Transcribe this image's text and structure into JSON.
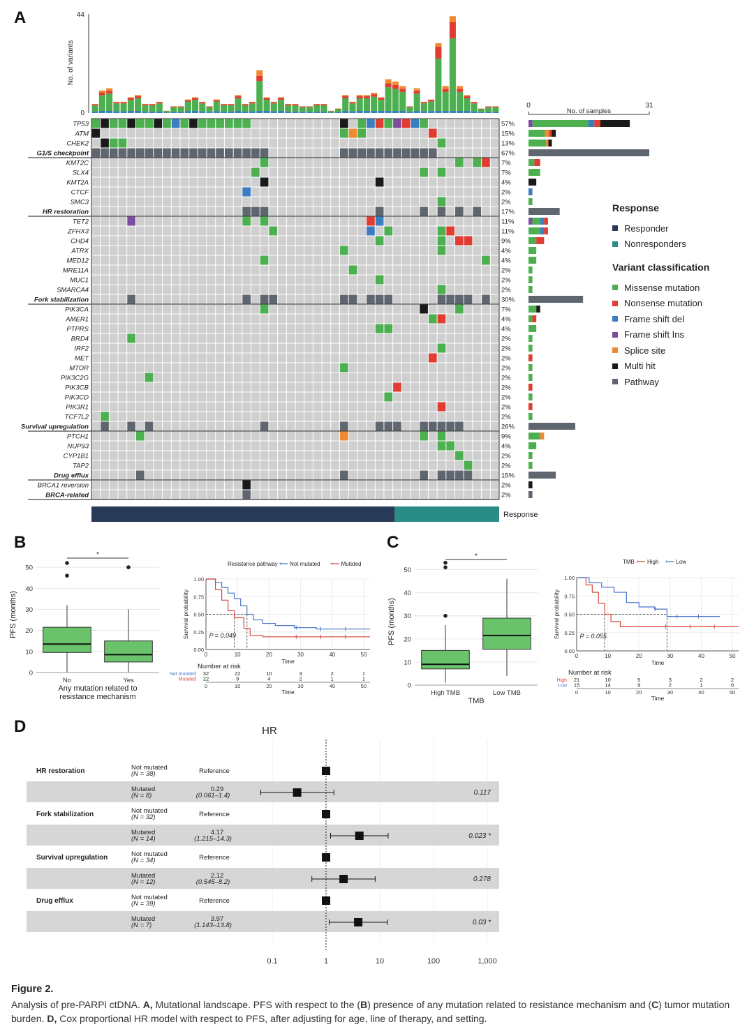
{
  "panels": {
    "a": "A",
    "b": "B",
    "c": "C",
    "d": "D"
  },
  "colors": {
    "missense": "#4caf50",
    "nonsense": "#e03c31",
    "frameshift_del": "#3a7dc0",
    "frameshift_ins": "#7c4d9e",
    "splice": "#ef8a32",
    "multi": "#1a1a1a",
    "pathway": "#5f6670",
    "empty": "#cfcfcf",
    "responder": "#283a57",
    "nonresponder": "#2a8c87",
    "box_fill": "#6ac36a",
    "km_not": "#4a74c9",
    "km_mut": "#d4463f"
  },
  "oncoprint": {
    "ylabel": "No. of variants",
    "ymax_label": "44",
    "ymin_label": "0",
    "samples_axis": {
      "label": "No. of samples",
      "min": "0",
      "max": "31"
    },
    "response_label": "Response",
    "rows": [
      {
        "name": "TP53",
        "pct": "57%",
        "group": false
      },
      {
        "name": "ATM",
        "pct": "15%",
        "group": false
      },
      {
        "name": "CHEK2",
        "pct": "13%",
        "group": false
      },
      {
        "name": "G1/S checkpoint",
        "pct": "67%",
        "group": true
      },
      {
        "name": "KMT2C",
        "pct": "7%",
        "group": false
      },
      {
        "name": "SLX4",
        "pct": "7%",
        "group": false
      },
      {
        "name": "KMT2A",
        "pct": "4%",
        "group": false
      },
      {
        "name": "CTCF",
        "pct": "2%",
        "group": false
      },
      {
        "name": "SMC3",
        "pct": "2%",
        "group": false
      },
      {
        "name": "HR restoration",
        "pct": "17%",
        "group": true
      },
      {
        "name": "TET2",
        "pct": "11%",
        "group": false
      },
      {
        "name": "ZFHX3",
        "pct": "11%",
        "group": false
      },
      {
        "name": "CHD4",
        "pct": "9%",
        "group": false
      },
      {
        "name": "ATRX",
        "pct": "4%",
        "group": false
      },
      {
        "name": "MED12",
        "pct": "4%",
        "group": false
      },
      {
        "name": "MRE11A",
        "pct": "2%",
        "group": false
      },
      {
        "name": "MUC1",
        "pct": "2%",
        "group": false
      },
      {
        "name": "SMARCA4",
        "pct": "2%",
        "group": false
      },
      {
        "name": "Fork stabilization",
        "pct": "30%",
        "group": true
      },
      {
        "name": "PIK3CA",
        "pct": "7%",
        "group": false
      },
      {
        "name": "AMER1",
        "pct": "4%",
        "group": false
      },
      {
        "name": "PTPRS",
        "pct": "4%",
        "group": false
      },
      {
        "name": "BRD4",
        "pct": "2%",
        "group": false
      },
      {
        "name": "IRF2",
        "pct": "2%",
        "group": false
      },
      {
        "name": "MET",
        "pct": "2%",
        "group": false
      },
      {
        "name": "MTOR",
        "pct": "2%",
        "group": false
      },
      {
        "name": "PIK3C2G",
        "pct": "2%",
        "group": false
      },
      {
        "name": "PIK3CB",
        "pct": "2%",
        "group": false
      },
      {
        "name": "PIK3CD",
        "pct": "2%",
        "group": false
      },
      {
        "name": "PIK3R1",
        "pct": "2%",
        "group": false
      },
      {
        "name": "TCF7L2",
        "pct": "2%",
        "group": false
      },
      {
        "name": "Survival upregulation",
        "pct": "26%",
        "group": true
      },
      {
        "name": "PTCH1",
        "pct": "9%",
        "group": false
      },
      {
        "name": "NUP93",
        "pct": "4%",
        "group": false
      },
      {
        "name": "CYP1B1",
        "pct": "2%",
        "group": false
      },
      {
        "name": "TAP2",
        "pct": "2%",
        "group": false
      },
      {
        "name": "Drug efflux",
        "pct": "15%",
        "group": true
      },
      {
        "name": "BRCA1 reversion",
        "pct": "2%",
        "group": false
      },
      {
        "name": "BRCA-related",
        "pct": "2%",
        "group": true
      }
    ]
  },
  "legend": {
    "response_title": "Response",
    "response": [
      {
        "label": "Responder",
        "color": "#283a57"
      },
      {
        "label": "Nonresponders",
        "color": "#2a8c87"
      }
    ],
    "variant_title": "Variant classification",
    "variants": [
      {
        "label": "Missense mutation",
        "color": "#4caf50"
      },
      {
        "label": "Nonsense mutation",
        "color": "#e03c31"
      },
      {
        "label": "Frame shift del",
        "color": "#3a7dc0"
      },
      {
        "label": "Frame shift Ins",
        "color": "#7c4d9e"
      },
      {
        "label": "Splice site",
        "color": "#ef8a32"
      },
      {
        "label": "Multi hit",
        "color": "#1a1a1a"
      },
      {
        "label": "Pathway",
        "color": "#5f6670"
      }
    ]
  },
  "chart_data": [
    {
      "id": "oncoprint_top_bars",
      "type": "bar",
      "title": "",
      "ylabel": "No. of variants",
      "ylim": [
        0,
        44
      ],
      "values": [
        4,
        10,
        11,
        5,
        5,
        7,
        8,
        4,
        4,
        5,
        1,
        3,
        3,
        6,
        7,
        5,
        3,
        6,
        4,
        4,
        8,
        4,
        5,
        19,
        7,
        5,
        7,
        4,
        4,
        3,
        3,
        4,
        4,
        1,
        2,
        8,
        5,
        8,
        8,
        9,
        7,
        15,
        14,
        12,
        3,
        11,
        5,
        6,
        31,
        12,
        43,
        12,
        8,
        5,
        2,
        3,
        3
      ]
    },
    {
      "id": "oncoprint_samples",
      "type": "bar",
      "title": "No. of samples",
      "xlim": [
        0,
        31
      ],
      "categories": [
        "TP53",
        "ATM",
        "CHEK2",
        "G1/S checkpoint",
        "KMT2C",
        "SLX4",
        "KMT2A",
        "CTCF",
        "SMC3",
        "HR restoration",
        "TET2",
        "ZFHX3",
        "CHD4",
        "ATRX",
        "MED12",
        "MRE11A",
        "MUC1",
        "SMARCA4",
        "Fork stabilization",
        "PIK3CA",
        "AMER1",
        "PTPRS",
        "BRD4",
        "IRF2",
        "MET",
        "MTOR",
        "PIK3C2G",
        "PIK3CB",
        "PIK3CD",
        "PIK3R1",
        "TCF7L2",
        "Survival upregulation",
        "PTCH1",
        "NUP93",
        "CYP1B1",
        "TAP2",
        "Drug efflux",
        "BRCA1 reversion",
        "BRCA-related"
      ],
      "values": [
        26,
        7,
        6,
        31,
        3,
        3,
        2,
        1,
        1,
        8,
        5,
        5,
        4,
        2,
        2,
        1,
        1,
        1,
        14,
        3,
        2,
        2,
        1,
        1,
        1,
        1,
        1,
        1,
        1,
        1,
        1,
        12,
        4,
        2,
        1,
        1,
        7,
        1,
        1
      ]
    },
    {
      "id": "B_box",
      "type": "box",
      "ylabel": "PFS (months)",
      "xlabel": "Any mutation related to resistance mechanism",
      "categories": [
        "No",
        "Yes"
      ],
      "ylim": [
        0,
        55
      ],
      "yticks": [
        "0",
        "10",
        "20",
        "30",
        "40",
        "50"
      ],
      "boxes": [
        {
          "min": 0,
          "q1": 9.5,
          "median": 13.5,
          "q3": 21.5,
          "max": 32,
          "outliers": [
            46,
            52
          ]
        },
        {
          "min": 0,
          "q1": 5,
          "median": 8.5,
          "q3": 15,
          "max": 30,
          "outliers": [
            50
          ]
        }
      ],
      "sig": "*"
    },
    {
      "id": "B_km",
      "type": "line",
      "legend_title": "Resistance pathway",
      "series_names": [
        "Not mutated",
        "Mutated"
      ],
      "xlabel": "Time",
      "ylabel": "Survival probability",
      "xlim": [
        0,
        52
      ],
      "ylim": [
        0,
        1
      ],
      "xticks": [
        "0",
        "10",
        "20",
        "30",
        "40",
        "50"
      ],
      "yticks": [
        "0.00",
        "0.25",
        "0.50",
        "0.75",
        "1.00"
      ],
      "pvalue": "P = 0.049",
      "median_lines": [
        9,
        13
      ],
      "series": [
        {
          "name": "Not mutated",
          "x": [
            0,
            3,
            5,
            7,
            9,
            11,
            13,
            15,
            18,
            22,
            28,
            35,
            46,
            52
          ],
          "y": [
            1,
            0.95,
            0.88,
            0.8,
            0.72,
            0.62,
            0.5,
            0.42,
            0.37,
            0.34,
            0.31,
            0.29,
            0.29,
            0.29
          ]
        },
        {
          "name": "Mutated",
          "x": [
            0,
            3,
            5,
            7,
            9,
            12,
            14,
            18,
            52
          ],
          "y": [
            1,
            0.85,
            0.7,
            0.55,
            0.45,
            0.3,
            0.2,
            0.18,
            0.18
          ]
        }
      ],
      "risk_table": {
        "title": "Number at risk",
        "rows": [
          {
            "label": "Not mutated",
            "values": [
              "32",
              "22",
              "10",
              "3",
              "2",
              "1"
            ]
          },
          {
            "label": "Mutated",
            "values": [
              "22",
              "9",
              "4",
              "2",
              "1",
              "1"
            ]
          }
        ],
        "xlabel": "Time"
      }
    },
    {
      "id": "C_box",
      "type": "box",
      "ylabel": "PFS (months)",
      "xlabel": "TMB",
      "categories": [
        "High TMB",
        "Low TMB"
      ],
      "ylim": [
        0,
        55
      ],
      "yticks": [
        "0",
        "10",
        "20",
        "30",
        "40",
        "50"
      ],
      "boxes": [
        {
          "min": 1,
          "q1": 7,
          "median": 9,
          "q3": 15,
          "max": 26,
          "outliers": [
            30,
            51,
            53
          ]
        },
        {
          "min": 4,
          "q1": 15.5,
          "median": 21.5,
          "q3": 29,
          "max": 46,
          "outliers": []
        }
      ],
      "sig": "*"
    },
    {
      "id": "C_km",
      "type": "line",
      "legend_title": "TMB",
      "series_names": [
        "High",
        "Low"
      ],
      "xlabel": "Time",
      "ylabel": "Survival probability",
      "xlim": [
        0,
        52
      ],
      "ylim": [
        0,
        1
      ],
      "xticks": [
        "0",
        "10",
        "20",
        "30",
        "40",
        "50"
      ],
      "yticks": [
        "0.00",
        "0.25",
        "0.50",
        "0.75",
        "1.00"
      ],
      "pvalue": "P = 0.055",
      "median_lines": [
        9,
        29
      ],
      "series": [
        {
          "name": "High",
          "x": [
            0,
            3,
            5,
            7,
            9,
            11,
            14,
            18,
            52
          ],
          "y": [
            1,
            0.9,
            0.8,
            0.65,
            0.5,
            0.4,
            0.33,
            0.33,
            0.33
          ]
        },
        {
          "name": "Low",
          "x": [
            0,
            4,
            8,
            12,
            16,
            20,
            25,
            29,
            35,
            46
          ],
          "y": [
            1,
            0.93,
            0.87,
            0.8,
            0.66,
            0.6,
            0.57,
            0.47,
            0.47,
            0.47
          ]
        }
      ],
      "risk_table": {
        "title": "Number at risk",
        "rows": [
          {
            "label": "High",
            "values": [
              "21",
              "10",
              "5",
              "3",
              "2",
              "2"
            ]
          },
          {
            "label": "Low",
            "values": [
              "15",
              "14",
              "9",
              "2",
              "1",
              "0"
            ]
          }
        ],
        "xlabel": "Time"
      }
    },
    {
      "id": "D_forest",
      "type": "forest",
      "title": "HR",
      "xscale": "log",
      "xticks": [
        "0.1",
        "1",
        "10",
        "100",
        "1,000"
      ],
      "rows": [
        {
          "group": "HR restoration",
          "label": "Not mutated",
          "n": "(N = 38)",
          "est": "Reference",
          "ci": "",
          "hr": 1,
          "lo": 1,
          "hi": 1,
          "p": "",
          "shade": false
        },
        {
          "group": "",
          "label": "Mutated",
          "n": "(N = 8)",
          "est": "0.29",
          "ci": "(0.061–1.4)",
          "hr": 0.29,
          "lo": 0.061,
          "hi": 1.4,
          "p": "0.117",
          "shade": true
        },
        {
          "group": "Fork stabilization",
          "label": "Not mutated",
          "n": "(N = 32)",
          "est": "Reference",
          "ci": "",
          "hr": 1,
          "lo": 1,
          "hi": 1,
          "p": "",
          "shade": false
        },
        {
          "group": "",
          "label": "Mutated",
          "n": "(N = 14)",
          "est": "4.17",
          "ci": "(1.215–14.3)",
          "hr": 4.17,
          "lo": 1.215,
          "hi": 14.3,
          "p": "0.023 *",
          "shade": true
        },
        {
          "group": "Survival upregulation",
          "label": "Not mutated",
          "n": "(N = 34)",
          "est": "Reference",
          "ci": "",
          "hr": 1,
          "lo": 1,
          "hi": 1,
          "p": "",
          "shade": false
        },
        {
          "group": "",
          "label": "Mutated",
          "n": "(N = 12)",
          "est": "2.12",
          "ci": "(0.545–8.2)",
          "hr": 2.12,
          "lo": 0.545,
          "hi": 8.2,
          "p": "0.278",
          "shade": true
        },
        {
          "group": "Drug efflux",
          "label": "Not mutated",
          "n": "(N = 39)",
          "est": "Reference",
          "ci": "",
          "hr": 1,
          "lo": 1,
          "hi": 1,
          "p": "",
          "shade": false
        },
        {
          "group": "",
          "label": "Mutated",
          "n": "(N = 7)",
          "est": "3.97",
          "ci": "(1.143–13.8)",
          "hr": 3.97,
          "lo": 1.143,
          "hi": 13.8,
          "p": "0.03 *",
          "shade": true
        }
      ]
    }
  ],
  "caption": {
    "figure": "Figure 2.",
    "t1": "Analysis of pre-PARPi ctDNA. ",
    "a": "A,",
    "t2": " Mutational landscape. PFS with respect to the (",
    "b": "B",
    "t3": ") presence of any mutation related to resistance mechanism and (",
    "c": "C",
    "t4": ") tumor mutation burden. ",
    "d": "D,",
    "t5": " Cox proportional HR model with respect to PFS, after adjusting for age, line of therapy, and setting."
  }
}
